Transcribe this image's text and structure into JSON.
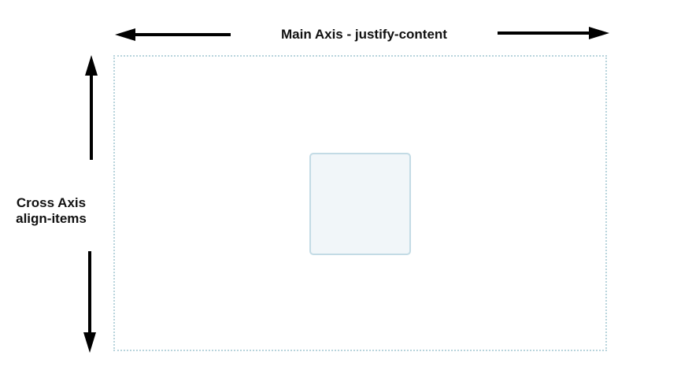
{
  "diagram": {
    "main_axis": {
      "label": "Main Axis - justify-content"
    },
    "cross_axis": {
      "label_line1": "Cross Axis",
      "label_line2": "align-items"
    }
  },
  "colors": {
    "arrow": "#000000",
    "label_text": "#111111",
    "container_border": "#b8d4dc",
    "item_fill": "#f1f6f9",
    "item_border": "#c3dbe5"
  }
}
